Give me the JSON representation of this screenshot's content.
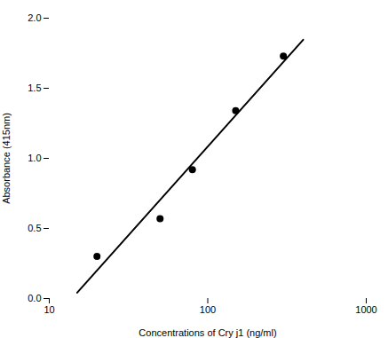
{
  "chart_data": {
    "type": "scatter",
    "xlabel": "Concentrations of Cry j1 (ng/ml)",
    "ylabel": "Absorbance (415nm)",
    "log": "x",
    "grid": false,
    "xlim": [
      10,
      1000
    ],
    "xticks": [
      10,
      100,
      1000
    ],
    "ylim": [
      0,
      2.0
    ],
    "yticks": [
      {
        "value": 0,
        "label": "0.0"
      },
      0.5,
      {
        "value": 1.0,
        "label": "1.0"
      },
      1.5,
      {
        "value": 2.0,
        "label": "2.0"
      }
    ],
    "series": [
      {
        "type": "line",
        "color": "black",
        "x": [
          15,
          400
        ],
        "values": [
          0.0417,
          1.8461
        ]
      },
      {
        "type": "scatter",
        "color": "black",
        "x": [
          20,
          50,
          80,
          150,
          300
        ],
        "values": [
          0.3,
          0.57,
          0.92,
          1.34,
          1.73
        ]
      }
    ]
  }
}
